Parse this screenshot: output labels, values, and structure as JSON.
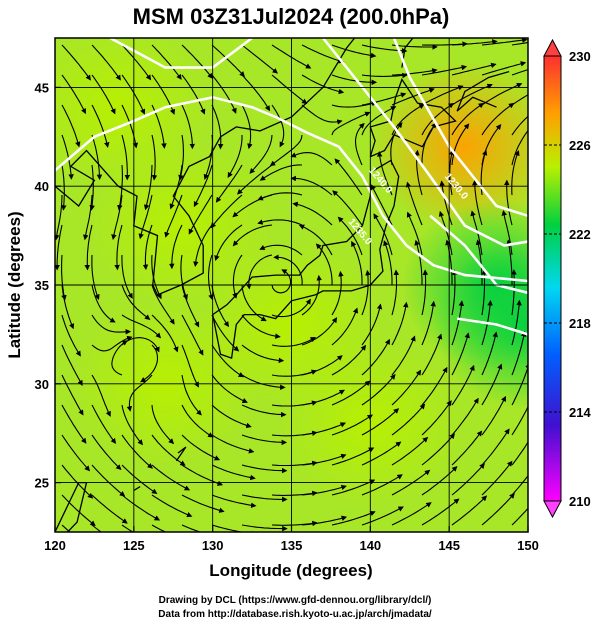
{
  "chart_data": {
    "type": "heatmap",
    "title": "MSM 03Z31Jul2024 (200.0hPa)",
    "xlabel": "Longitude (degrees)",
    "ylabel": "Latitude  (degrees)",
    "xlim": [
      120,
      150
    ],
    "ylim": [
      22.5,
      47.5
    ],
    "x_ticks": [
      120,
      125,
      130,
      135,
      140,
      145,
      150
    ],
    "y_ticks": [
      25,
      30,
      35,
      40,
      45
    ],
    "grid": true,
    "colorbar": {
      "range": [
        210,
        230
      ],
      "ticks": [
        210,
        214,
        218,
        222,
        226,
        230
      ],
      "colors": [
        "#ff00ff",
        "#0033dd",
        "#00d0f0",
        "#00d040",
        "#c8f000",
        "#ffaa00",
        "#ff3030"
      ]
    },
    "field_hotspots": [
      {
        "lon": 146,
        "lat": 42,
        "value": 227
      },
      {
        "lon": 127,
        "lat": 30,
        "value": 224.5
      },
      {
        "lon": 135,
        "lat": 33,
        "value": 224
      },
      {
        "lon": 140,
        "lat": 28,
        "value": 224
      },
      {
        "lon": 124,
        "lat": 44,
        "value": 223
      },
      {
        "lon": 148,
        "lat": 35,
        "value": 221.5
      },
      {
        "lon": 150,
        "lat": 33,
        "value": 221
      },
      {
        "lon": 128,
        "lat": 38,
        "value": 224
      }
    ],
    "contours": [
      {
        "label": "1240.0",
        "label_lon": 140.5,
        "label_lat": 40.2
      },
      {
        "label": "1230.0",
        "label_lon": 145.3,
        "label_lat": 39.9
      },
      {
        "label": "1235.0",
        "label_lon": 139.2,
        "label_lat": 37.6
      }
    ],
    "vortex_center": {
      "lon": 125.6,
      "lat": 31.5
    },
    "credits": [
      "Drawing by DCL (https://www.gfd-dennou.org/library/dcl/)",
      "Data from http://database.rish.kyoto-u.ac.jp/arch/jmadata/"
    ]
  }
}
